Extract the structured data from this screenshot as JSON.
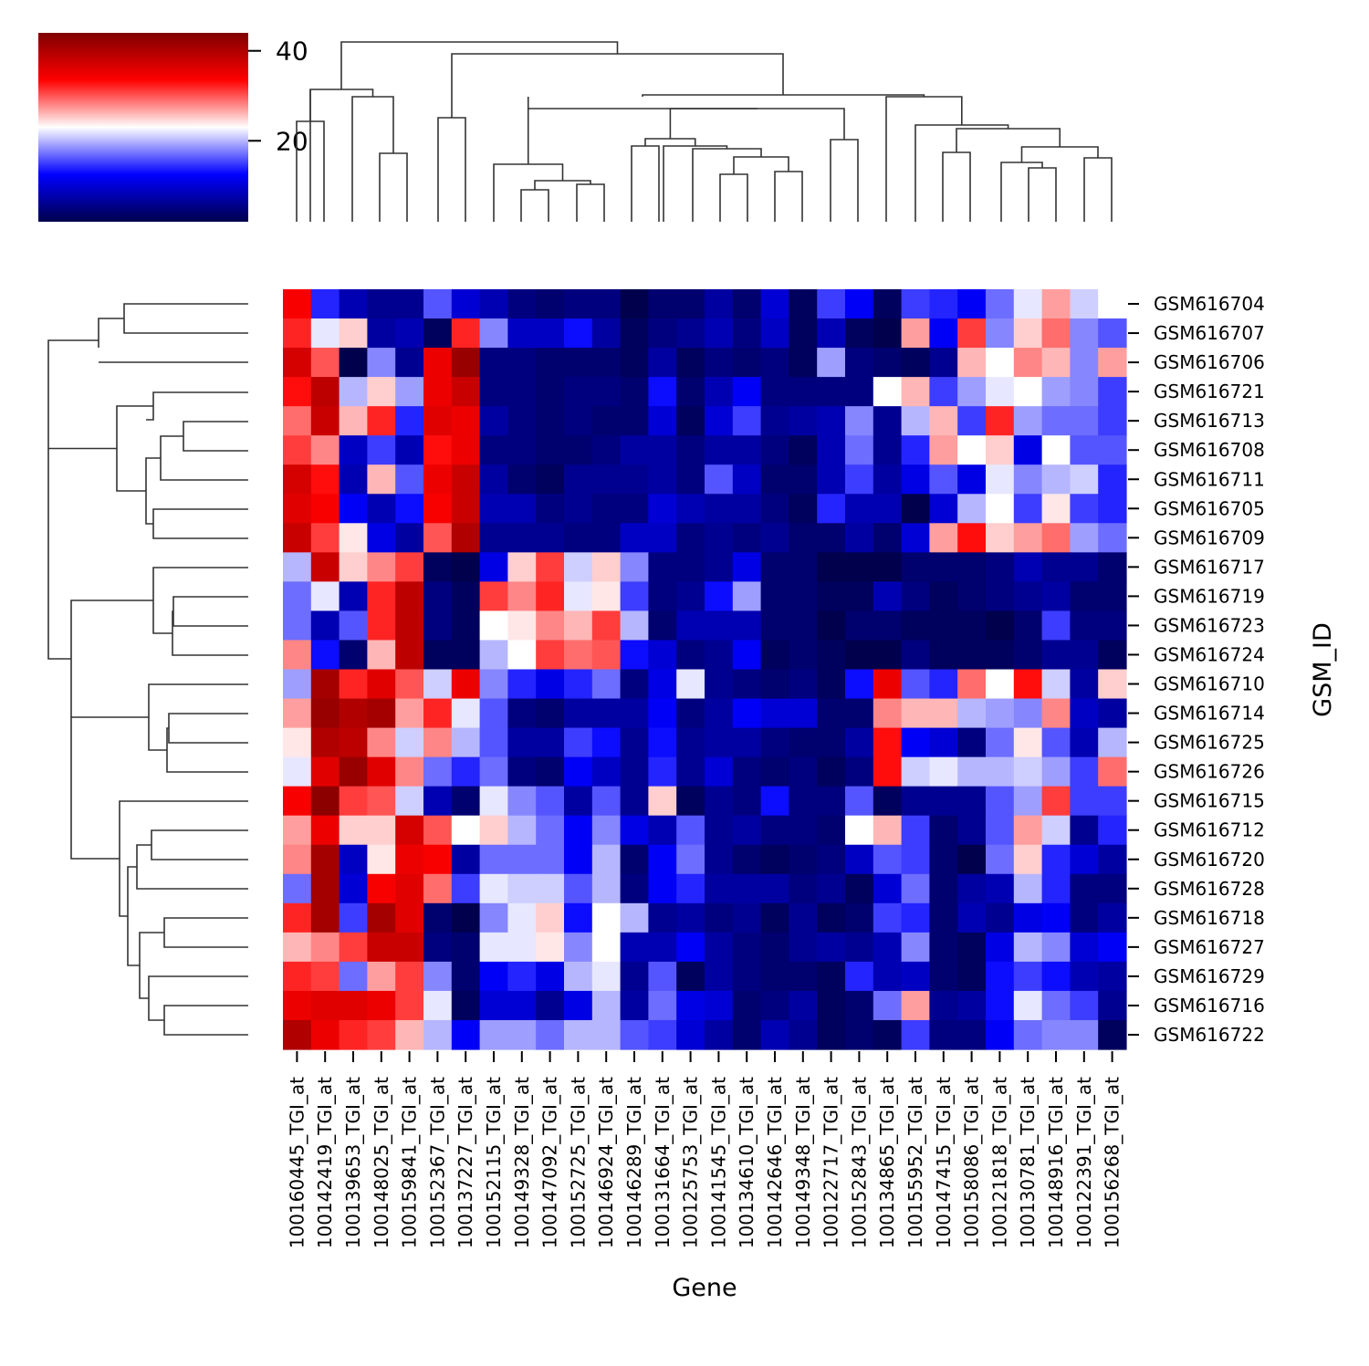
{
  "chart_data": {
    "type": "heatmap",
    "title": "",
    "xlabel": "Gene",
    "ylabel": "GSM_ID",
    "colormap": "seismic",
    "colorbar": {
      "ticks": [
        20,
        40
      ],
      "vmin": 2,
      "vmax": 44
    },
    "columns": [
      "100160445_TGI_at",
      "100142419_TGI_at",
      "100139653_TGI_at",
      "100148025_TGI_at",
      "100159841_TGI_at",
      "100152367_TGI_at",
      "100137227_TGI_at",
      "100152115_TGI_at",
      "100149328_TGI_at",
      "100147092_TGI_at",
      "100152725_TGI_at",
      "100146924_TGI_at",
      "100146289_TGI_at",
      "100131664_TGI_at",
      "100125753_TGI_at",
      "100141545_TGI_at",
      "100134610_TGI_at",
      "100142646_TGI_at",
      "100149348_TGI_at",
      "100122717_TGI_at",
      "100152843_TGI_at",
      "100134865_TGI_at",
      "100155952_TGI_at",
      "100147415_TGI_at",
      "100158086_TGI_at",
      "100121818_TGI_at",
      "100130781_TGI_at",
      "100148916_TGI_at",
      "100122391_TGI_at",
      "100156268_TGI_at"
    ],
    "rows": [
      "GSM616704",
      "GSM616707",
      "GSM616706",
      "GSM616721",
      "GSM616713",
      "GSM616708",
      "GSM616711",
      "GSM616705",
      "GSM616709",
      "GSM616717",
      "GSM616719",
      "GSM616723",
      "GSM616724",
      "GSM616710",
      "GSM616714",
      "GSM616725",
      "GSM616726",
      "GSM616715",
      "GSM616712",
      "GSM616720",
      "GSM616728",
      "GSM616718",
      "GSM616727",
      "GSM616729",
      "GSM616716",
      "GSM616722"
    ],
    "values": [
      [
        34,
        14,
        8,
        6,
        6,
        16,
        10,
        8,
        5,
        4,
        5,
        5,
        2,
        4,
        4,
        7,
        4,
        10,
        3,
        15,
        12,
        3,
        15,
        14,
        12,
        17,
        22,
        27,
        21,
        23
      ],
      [
        32,
        22,
        25,
        7,
        8,
        3,
        32,
        18,
        9,
        9,
        13,
        7,
        3,
        5,
        6,
        8,
        5,
        9,
        3,
        8,
        3,
        2,
        27,
        12,
        31,
        18,
        25,
        29,
        18,
        16
      ],
      [
        37,
        30,
        2,
        18,
        6,
        35,
        42,
        5,
        5,
        4,
        4,
        4,
        3,
        7,
        3,
        5,
        4,
        5,
        3,
        19,
        5,
        4,
        3,
        6,
        26,
        23,
        28,
        26,
        18,
        27
      ],
      [
        33,
        39,
        20,
        25,
        19,
        35,
        38,
        5,
        5,
        4,
        5,
        5,
        4,
        13,
        4,
        8,
        12,
        5,
        5,
        5,
        5,
        23,
        26,
        15,
        19,
        22,
        23,
        19,
        18,
        15
      ],
      [
        29,
        38,
        26,
        32,
        14,
        36,
        35,
        7,
        5,
        4,
        5,
        4,
        4,
        10,
        3,
        10,
        15,
        6,
        7,
        8,
        18,
        6,
        20,
        26,
        15,
        32,
        19,
        17,
        17,
        15
      ],
      [
        31,
        28,
        9,
        15,
        8,
        33,
        35,
        5,
        5,
        4,
        4,
        5,
        7,
        7,
        5,
        7,
        7,
        5,
        3,
        8,
        17,
        6,
        14,
        27,
        23,
        25,
        11,
        23,
        16,
        16
      ],
      [
        37,
        33,
        8,
        26,
        16,
        35,
        38,
        7,
        4,
        3,
        6,
        6,
        6,
        7,
        5,
        16,
        9,
        4,
        4,
        8,
        15,
        7,
        11,
        16,
        11,
        22,
        18,
        20,
        21,
        14
      ],
      [
        36,
        34,
        12,
        8,
        13,
        34,
        38,
        8,
        8,
        5,
        6,
        5,
        5,
        10,
        8,
        7,
        7,
        5,
        3,
        14,
        8,
        8,
        2,
        10,
        20,
        23,
        15,
        24,
        15,
        14
      ],
      [
        38,
        31,
        24,
        11,
        7,
        30,
        40,
        6,
        6,
        6,
        5,
        5,
        9,
        9,
        5,
        6,
        5,
        6,
        4,
        4,
        7,
        4,
        10,
        27,
        33,
        25,
        27,
        29,
        19,
        17
      ],
      [
        20,
        38,
        25,
        28,
        31,
        3,
        2,
        11,
        25,
        31,
        21,
        25,
        18,
        5,
        5,
        6,
        11,
        4,
        4,
        2,
        2,
        2,
        4,
        4,
        4,
        5,
        8,
        6,
        6,
        4
      ],
      [
        17,
        22,
        8,
        32,
        39,
        5,
        3,
        31,
        28,
        32,
        22,
        24,
        15,
        5,
        6,
        13,
        19,
        4,
        4,
        3,
        3,
        8,
        5,
        3,
        4,
        5,
        6,
        7,
        4,
        4
      ],
      [
        17,
        8,
        16,
        32,
        39,
        5,
        3,
        23,
        24,
        28,
        26,
        31,
        20,
        4,
        8,
        8,
        8,
        4,
        4,
        2,
        4,
        4,
        3,
        3,
        3,
        2,
        4,
        15,
        5,
        5
      ],
      [
        28,
        13,
        4,
        26,
        39,
        3,
        3,
        20,
        23,
        31,
        29,
        30,
        13,
        10,
        5,
        6,
        12,
        3,
        4,
        3,
        2,
        2,
        5,
        3,
        3,
        3,
        4,
        6,
        6,
        3
      ],
      [
        19,
        41,
        32,
        36,
        30,
        21,
        35,
        18,
        14,
        11,
        14,
        17,
        5,
        11,
        22,
        6,
        5,
        4,
        5,
        3,
        13,
        35,
        16,
        14,
        29,
        23,
        33,
        21,
        7,
        25
      ],
      [
        27,
        42,
        40,
        41,
        27,
        32,
        22,
        16,
        5,
        4,
        7,
        7,
        7,
        12,
        5,
        7,
        12,
        10,
        10,
        4,
        4,
        28,
        26,
        26,
        20,
        19,
        18,
        28,
        9,
        7
      ],
      [
        24,
        40,
        39,
        28,
        21,
        28,
        20,
        16,
        7,
        7,
        15,
        13,
        6,
        13,
        6,
        7,
        7,
        5,
        4,
        4,
        7,
        33,
        12,
        10,
        5,
        17,
        24,
        16,
        8,
        20
      ],
      [
        22,
        36,
        42,
        36,
        28,
        17,
        14,
        17,
        5,
        4,
        12,
        9,
        6,
        14,
        6,
        10,
        5,
        4,
        5,
        3,
        5,
        33,
        21,
        22,
        20,
        20,
        21,
        19,
        15,
        29
      ],
      [
        34,
        43,
        31,
        30,
        21,
        8,
        4,
        22,
        18,
        16,
        7,
        16,
        6,
        25,
        3,
        6,
        5,
        13,
        5,
        5,
        16,
        3,
        6,
        6,
        6,
        16,
        19,
        31,
        15,
        15
      ],
      [
        27,
        35,
        25,
        25,
        37,
        30,
        23,
        25,
        20,
        17,
        12,
        18,
        11,
        8,
        16,
        6,
        7,
        5,
        5,
        4,
        23,
        26,
        15,
        4,
        6,
        16,
        27,
        21,
        6,
        14
      ],
      [
        28,
        41,
        9,
        24,
        35,
        34,
        7,
        17,
        17,
        17,
        12,
        20,
        4,
        12,
        17,
        6,
        4,
        3,
        4,
        5,
        9,
        16,
        15,
        4,
        2,
        17,
        25,
        14,
        10,
        7
      ],
      [
        17,
        41,
        10,
        34,
        36,
        29,
        15,
        22,
        21,
        21,
        16,
        20,
        5,
        12,
        14,
        7,
        7,
        7,
        5,
        6,
        3,
        10,
        17,
        4,
        7,
        8,
        20,
        14,
        5,
        5
      ],
      [
        32,
        41,
        15,
        41,
        36,
        4,
        2,
        18,
        22,
        25,
        13,
        23,
        20,
        6,
        7,
        5,
        6,
        3,
        6,
        3,
        4,
        15,
        14,
        4,
        8,
        6,
        11,
        12,
        5,
        7
      ],
      [
        26,
        28,
        31,
        38,
        38,
        5,
        4,
        22,
        22,
        24,
        18,
        23,
        8,
        8,
        12,
        7,
        5,
        4,
        6,
        7,
        6,
        8,
        18,
        4,
        3,
        11,
        20,
        18,
        10,
        12
      ],
      [
        32,
        31,
        17,
        27,
        31,
        18,
        4,
        12,
        14,
        11,
        20,
        22,
        6,
        16,
        3,
        7,
        5,
        4,
        4,
        3,
        14,
        8,
        9,
        4,
        3,
        13,
        15,
        13,
        8,
        7
      ],
      [
        35,
        36,
        36,
        35,
        31,
        22,
        3,
        10,
        10,
        6,
        11,
        20,
        7,
        17,
        11,
        10,
        4,
        5,
        7,
        3,
        4,
        17,
        27,
        6,
        7,
        13,
        22,
        17,
        15,
        6
      ],
      [
        40,
        35,
        32,
        31,
        26,
        20,
        12,
        19,
        19,
        17,
        20,
        20,
        16,
        15,
        10,
        7,
        4,
        8,
        6,
        3,
        4,
        3,
        15,
        5,
        5,
        12,
        17,
        18,
        18,
        3
      ]
    ]
  }
}
